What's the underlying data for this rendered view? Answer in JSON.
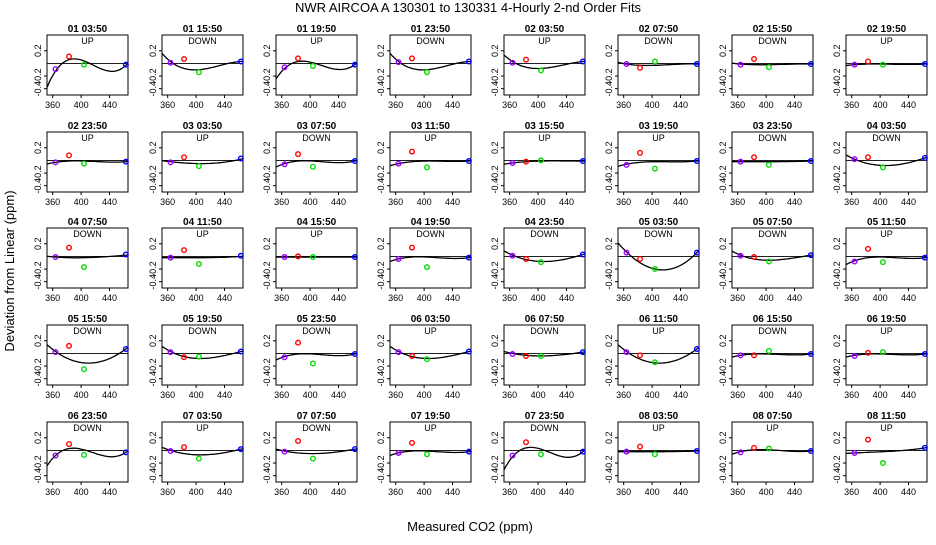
{
  "chart_data": {
    "type": "scatter",
    "title": "NWR   AIRCOA A   130301 to 130331   4-Hourly 2-nd Order Fits",
    "xlabel": "Measured CO2 (ppm)",
    "ylabel": "Deviation from Linear (ppm)",
    "xlim": [
      352,
      466
    ],
    "ylim": [
      -0.5,
      0.45
    ],
    "x_ticks": [
      360,
      400,
      440
    ],
    "y_ticks": [
      -0.4,
      -0.2,
      0.2
    ],
    "standards_x": [
      364,
      383,
      404,
      463
    ],
    "point_colors": [
      "#9900ff",
      "#ff0000",
      "#00dd00",
      "#0000ff"
    ],
    "legend": "none",
    "grid": false,
    "panels": [
      {
        "label": "01 03:50",
        "dir": "UP",
        "y": [
          -0.09,
          0.11,
          -0.02,
          -0.02
        ],
        "curve": [
          -0.12,
          0.06,
          0.04,
          -0.03
        ]
      },
      {
        "label": "01 15:50",
        "dir": "DOWN",
        "y": [
          0.01,
          0.07,
          -0.14,
          0.03
        ],
        "curve": [
          0.03,
          -0.08,
          -0.1,
          0.03
        ]
      },
      {
        "label": "01 19:50",
        "dir": "UP",
        "y": [
          -0.06,
          0.08,
          -0.04,
          -0.02
        ],
        "curve": [
          -0.08,
          0.03,
          0.01,
          -0.02
        ]
      },
      {
        "label": "01 23:50",
        "dir": "DOWN",
        "y": [
          0.02,
          0.08,
          -0.14,
          0.03
        ],
        "curve": [
          0.03,
          -0.08,
          -0.1,
          0.03
        ]
      },
      {
        "label": "02 03:50",
        "dir": "UP",
        "y": [
          0.01,
          0.06,
          -0.11,
          0.03
        ],
        "curve": [
          0.03,
          -0.06,
          -0.08,
          0.03
        ]
      },
      {
        "label": "02 07:50",
        "dir": "DOWN",
        "y": [
          -0.01,
          -0.07,
          0.03,
          -0.01
        ],
        "curve": [
          -0.01,
          -0.03,
          -0.03,
          -0.01
        ]
      },
      {
        "label": "02 15:50",
        "dir": "DOWN",
        "y": [
          -0.02,
          0.07,
          -0.06,
          -0.01
        ],
        "curve": [
          -0.01,
          -0.02,
          -0.02,
          -0.01
        ]
      },
      {
        "label": "02 19:50",
        "dir": "UP",
        "y": [
          -0.02,
          0.03,
          -0.02,
          -0.01
        ],
        "curve": [
          -0.02,
          -0.01,
          -0.01,
          -0.01
        ]
      },
      {
        "label": "02 23:50",
        "dir": "UP",
        "y": [
          -0.03,
          0.08,
          -0.05,
          -0.02
        ],
        "curve": [
          -0.03,
          -0.01,
          -0.01,
          -0.02
        ]
      },
      {
        "label": "03 03:50",
        "dir": "UP",
        "y": [
          -0.03,
          0.05,
          -0.09,
          0.03
        ],
        "curve": [
          -0.02,
          -0.04,
          -0.05,
          0.02
        ]
      },
      {
        "label": "03 07:50",
        "dir": "DOWN",
        "y": [
          -0.06,
          0.1,
          -0.1,
          -0.01
        ],
        "curve": [
          -0.05,
          -0.01,
          -0.01,
          -0.01
        ]
      },
      {
        "label": "03 11:50",
        "dir": "UP",
        "y": [
          -0.05,
          0.14,
          -0.11,
          -0.01
        ],
        "curve": [
          -0.05,
          -0.02,
          -0.01,
          -0.01
        ]
      },
      {
        "label": "03 15:50",
        "dir": "UP",
        "y": [
          -0.04,
          -0.02,
          0.0,
          -0.01
        ],
        "curve": [
          -0.04,
          -0.02,
          -0.01,
          -0.01
        ]
      },
      {
        "label": "03 19:50",
        "dir": "UP",
        "y": [
          -0.07,
          0.12,
          -0.13,
          -0.01
        ],
        "curve": [
          -0.06,
          -0.03,
          -0.02,
          -0.01
        ]
      },
      {
        "label": "03 23:50",
        "dir": "DOWN",
        "y": [
          -0.02,
          0.05,
          -0.07,
          -0.01
        ],
        "curve": [
          -0.02,
          -0.02,
          -0.02,
          -0.01
        ]
      },
      {
        "label": "04 03:50",
        "dir": "DOWN",
        "y": [
          0.02,
          0.05,
          -0.11,
          0.04
        ],
        "curve": [
          0.02,
          -0.05,
          -0.08,
          0.04
        ]
      },
      {
        "label": "04 07:50",
        "dir": "DOWN",
        "y": [
          -0.01,
          0.14,
          -0.17,
          0.03
        ],
        "curve": [
          -0.01,
          -0.02,
          -0.02,
          0.02
        ]
      },
      {
        "label": "04 11:50",
        "dir": "UP",
        "y": [
          -0.02,
          0.1,
          -0.12,
          0.01
        ],
        "curve": [
          -0.02,
          -0.02,
          -0.02,
          0.0
        ]
      },
      {
        "label": "04 15:50",
        "dir": "UP",
        "y": [
          -0.01,
          0.0,
          -0.01,
          -0.01
        ],
        "curve": [
          -0.01,
          -0.01,
          -0.01,
          -0.01
        ]
      },
      {
        "label": "04 19:50",
        "dir": "DOWN",
        "y": [
          -0.04,
          0.14,
          -0.17,
          -0.02
        ],
        "curve": [
          -0.04,
          -0.01,
          -0.01,
          -0.02
        ]
      },
      {
        "label": "04 23:50",
        "dir": "DOWN",
        "y": [
          0.01,
          -0.04,
          -0.09,
          0.03
        ],
        "curve": [
          0.02,
          -0.05,
          -0.08,
          0.03
        ]
      },
      {
        "label": "05 03:50",
        "dir": "DOWN",
        "y": [
          0.06,
          -0.04,
          -0.2,
          0.06
        ],
        "curve": [
          0.07,
          -0.1,
          -0.2,
          0.06
        ]
      },
      {
        "label": "05 07:50",
        "dir": "DOWN",
        "y": [
          0.01,
          -0.01,
          -0.08,
          0.02
        ],
        "curve": [
          0.02,
          -0.04,
          -0.06,
          0.02
        ]
      },
      {
        "label": "05 11:50",
        "dir": "UP",
        "y": [
          -0.08,
          0.12,
          -0.09,
          -0.02
        ],
        "curve": [
          -0.07,
          -0.02,
          -0.01,
          -0.02
        ]
      },
      {
        "label": "05 15:50",
        "dir": "DOWN",
        "y": [
          0.02,
          0.12,
          -0.25,
          0.07
        ],
        "curve": [
          0.03,
          -0.09,
          -0.15,
          0.07
        ]
      },
      {
        "label": "05 19:50",
        "dir": "DOWN",
        "y": [
          0.02,
          -0.06,
          -0.05,
          0.03
        ],
        "curve": [
          0.03,
          -0.05,
          -0.08,
          0.03
        ]
      },
      {
        "label": "05 23:50",
        "dir": "DOWN",
        "y": [
          -0.06,
          0.17,
          -0.16,
          -0.01
        ],
        "curve": [
          -0.05,
          -0.01,
          -0.01,
          -0.01
        ]
      },
      {
        "label": "06 03:50",
        "dir": "UP",
        "y": [
          0.02,
          -0.04,
          -0.09,
          0.03
        ],
        "curve": [
          0.03,
          -0.05,
          -0.08,
          0.03
        ]
      },
      {
        "label": "06 07:50",
        "dir": "DOWN",
        "y": [
          -0.01,
          -0.04,
          -0.04,
          0.02
        ],
        "curve": [
          0.0,
          -0.03,
          -0.04,
          0.02
        ]
      },
      {
        "label": "06 11:50",
        "dir": "UP",
        "y": [
          0.02,
          -0.03,
          -0.14,
          0.07
        ],
        "curve": [
          0.03,
          -0.09,
          -0.15,
          0.07
        ]
      },
      {
        "label": "06 15:50",
        "dir": "DOWN",
        "y": [
          -0.03,
          -0.03,
          0.04,
          -0.01
        ],
        "curve": [
          -0.03,
          -0.01,
          -0.01,
          -0.01
        ]
      },
      {
        "label": "06 19:50",
        "dir": "UP",
        "y": [
          -0.04,
          0.01,
          0.02,
          -0.01
        ],
        "curve": [
          -0.03,
          -0.01,
          -0.01,
          -0.01
        ]
      },
      {
        "label": "06 23:50",
        "dir": "DOWN",
        "y": [
          -0.08,
          0.1,
          -0.07,
          -0.03
        ],
        "curve": [
          -0.08,
          0.03,
          0.01,
          -0.03
        ]
      },
      {
        "label": "07 03:50",
        "dir": "UP",
        "y": [
          -0.01,
          0.05,
          -0.13,
          0.02
        ],
        "curve": [
          0.0,
          -0.05,
          -0.07,
          0.02
        ]
      },
      {
        "label": "07 07:50",
        "dir": "DOWN",
        "y": [
          -0.02,
          0.15,
          -0.13,
          0.02
        ],
        "curve": [
          -0.01,
          -0.04,
          -0.05,
          0.02
        ]
      },
      {
        "label": "07 19:50",
        "dir": "UP",
        "y": [
          -0.04,
          0.12,
          -0.06,
          -0.02
        ],
        "curve": [
          -0.04,
          -0.01,
          -0.01,
          -0.02
        ]
      },
      {
        "label": "07 23:50",
        "dir": "DOWN",
        "y": [
          -0.08,
          0.13,
          -0.06,
          -0.02
        ],
        "curve": [
          -0.1,
          0.04,
          0.02,
          -0.02
        ]
      },
      {
        "label": "08 03:50",
        "dir": "UP",
        "y": [
          -0.02,
          0.06,
          -0.06,
          -0.01
        ],
        "curve": [
          -0.02,
          -0.02,
          -0.02,
          -0.01
        ]
      },
      {
        "label": "08 07:50",
        "dir": "UP",
        "y": [
          -0.03,
          0.04,
          0.03,
          -0.01
        ],
        "curve": [
          -0.02,
          0.01,
          0.01,
          -0.01
        ]
      },
      {
        "label": "08 11:50",
        "dir": "UP",
        "y": [
          -0.04,
          0.17,
          -0.2,
          0.04
        ],
        "curve": [
          -0.04,
          -0.03,
          -0.02,
          0.04
        ]
      }
    ]
  }
}
